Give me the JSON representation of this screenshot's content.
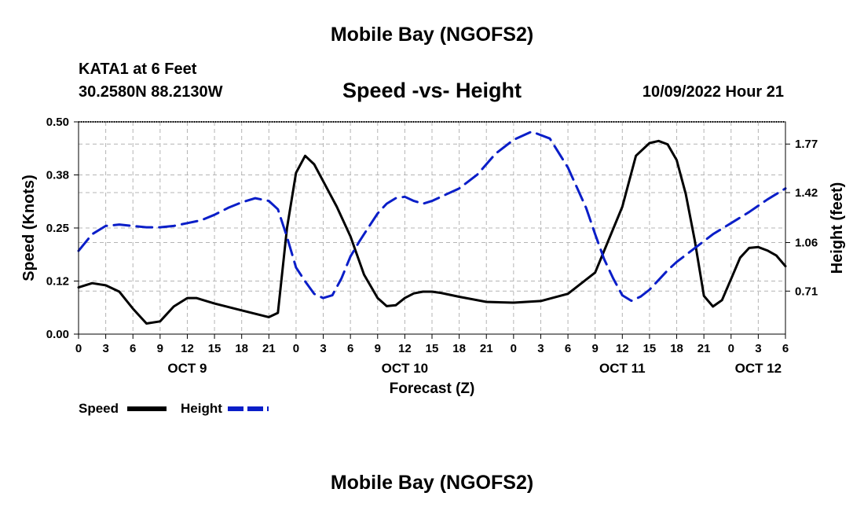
{
  "header": {
    "title": "Mobile Bay (NGOFS2)",
    "station": "KATA1 at 6 Feet",
    "coords": "30.2580N  88.2130W",
    "subtitle": "Speed -vs- Height",
    "datetime": "10/09/2022 Hour 21"
  },
  "footer": {
    "title_repeat": "Mobile Bay (NGOFS2)"
  },
  "chart_data": {
    "type": "line",
    "title": "Speed -vs- Height",
    "xlabel": "Forecast (Z)",
    "ylabel_left": "Speed (Knots)",
    "ylabel_right": "Height (feet)",
    "x_unit": "hours from Oct 9 00Z",
    "xlim": [
      0,
      78
    ],
    "ylim_left": [
      0,
      0.5
    ],
    "ylim_right": [
      0.4,
      1.93
    ],
    "left_ticks": [
      {
        "value": 0,
        "label": "0.00"
      },
      {
        "value": 0.125,
        "label": "0.12"
      },
      {
        "value": 0.25,
        "label": "0.25"
      },
      {
        "value": 0.375,
        "label": "0.38"
      },
      {
        "value": 0.5,
        "label": "0.50"
      }
    ],
    "right_ticks": [
      {
        "value": 0.71,
        "label": "0.71"
      },
      {
        "value": 1.06,
        "label": "1.06"
      },
      {
        "value": 1.42,
        "label": "1.42"
      },
      {
        "value": 1.77,
        "label": "1.77"
      }
    ],
    "x_ticks": [
      "0",
      "3",
      "6",
      "9",
      "12",
      "15",
      "18",
      "21",
      "0",
      "3",
      "6",
      "9",
      "12",
      "15",
      "18",
      "21",
      "0",
      "3",
      "6",
      "9",
      "12",
      "15",
      "18",
      "21",
      "0",
      "3",
      "6"
    ],
    "day_labels": [
      {
        "label": "OCT 9",
        "hour": 12
      },
      {
        "label": "OCT 10",
        "hour": 36
      },
      {
        "label": "OCT 11",
        "hour": 60
      },
      {
        "label": "OCT 12",
        "hour": 75
      }
    ],
    "grid": true,
    "legend_position": "bottom-left",
    "series": [
      {
        "name": "Speed",
        "axis": "left",
        "color": "#000000",
        "style": "solid",
        "x": [
          0,
          1.5,
          3,
          4.5,
          6,
          7.5,
          9,
          10.5,
          12,
          13,
          15,
          18,
          21,
          22,
          23,
          24,
          25,
          26,
          27,
          28.5,
          30,
          31.5,
          33,
          34,
          35,
          36,
          37,
          38,
          39,
          40,
          42,
          45,
          48,
          51,
          54,
          57,
          60,
          61.5,
          63,
          64,
          65,
          66,
          67,
          68,
          69,
          70,
          71,
          72,
          73,
          74,
          75,
          76,
          77,
          78
        ],
        "values": [
          0.11,
          0.12,
          0.115,
          0.1,
          0.06,
          0.025,
          0.03,
          0.065,
          0.085,
          0.085,
          0.072,
          0.056,
          0.04,
          0.05,
          0.25,
          0.38,
          0.42,
          0.4,
          0.36,
          0.3,
          0.23,
          0.14,
          0.085,
          0.066,
          0.068,
          0.085,
          0.096,
          0.1,
          0.1,
          0.097,
          0.088,
          0.076,
          0.074,
          0.078,
          0.095,
          0.145,
          0.3,
          0.42,
          0.45,
          0.455,
          0.447,
          0.41,
          0.33,
          0.22,
          0.09,
          0.065,
          0.08,
          0.13,
          0.18,
          0.203,
          0.205,
          0.197,
          0.185,
          0.16
        ]
      },
      {
        "name": "Height",
        "axis": "right",
        "color": "#0a1ec8",
        "style": "dashed",
        "x": [
          0,
          1.5,
          3,
          4.5,
          6,
          7.5,
          9,
          10.5,
          12,
          13.5,
          15,
          16.5,
          18,
          19.5,
          21,
          22,
          23,
          24,
          25,
          26,
          27,
          28,
          29,
          30,
          31,
          32,
          33,
          34,
          35,
          36,
          37,
          38,
          39,
          40,
          42,
          44,
          46,
          48,
          50,
          52,
          54,
          56,
          57,
          58,
          59,
          60,
          61,
          62,
          63,
          64,
          65,
          66,
          68,
          70,
          72,
          74,
          76,
          78
        ],
        "values": [
          1.0,
          1.12,
          1.18,
          1.19,
          1.18,
          1.17,
          1.17,
          1.18,
          1.2,
          1.22,
          1.26,
          1.31,
          1.35,
          1.38,
          1.36,
          1.3,
          1.1,
          0.88,
          0.78,
          0.69,
          0.66,
          0.68,
          0.8,
          0.96,
          1.07,
          1.17,
          1.27,
          1.34,
          1.38,
          1.39,
          1.36,
          1.34,
          1.36,
          1.39,
          1.45,
          1.55,
          1.7,
          1.8,
          1.86,
          1.81,
          1.6,
          1.31,
          1.12,
          0.94,
          0.8,
          0.68,
          0.64,
          0.67,
          0.72,
          0.79,
          0.86,
          0.92,
          1.02,
          1.12,
          1.2,
          1.28,
          1.37,
          1.45
        ]
      }
    ]
  }
}
